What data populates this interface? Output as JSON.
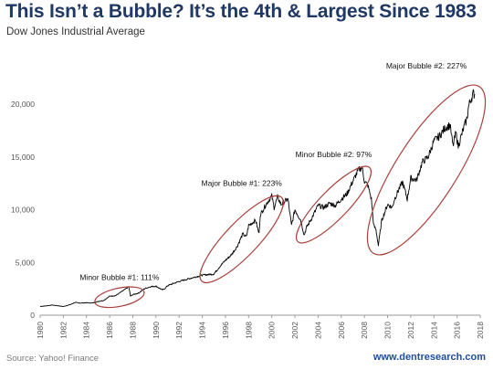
{
  "header": {
    "title": "This Isn’t a Bubble? It’s the 4th & Largest Since 1983",
    "subtitle": "Dow Jones Industrial  Average"
  },
  "footer": {
    "source": "Source: Yahoo! Finance",
    "website": "www.dentresearch.com"
  },
  "colors": {
    "title": "#1f3864",
    "line": "#000000",
    "ellipse": "#a8403a",
    "website": "#1f4e9a"
  },
  "chart_data": {
    "type": "line",
    "title": "This Isn’t a Bubble? It’s the 4th & Largest Since 1983",
    "subtitle": "Dow Jones Industrial  Average",
    "xlabel": "",
    "ylabel": "",
    "xlim": [
      1980,
      2018
    ],
    "ylim": [
      0,
      20000
    ],
    "grid": false,
    "y_ticks": [
      "0",
      "5,000",
      "10,000",
      "15,000",
      "20,000"
    ],
    "x_ticks": [
      "1980",
      "1982",
      "1984",
      "1986",
      "1988",
      "1990",
      "1992",
      "1994",
      "1996",
      "1998",
      "2000",
      "2002",
      "2004",
      "2006",
      "2008",
      "2010",
      "2012",
      "2014",
      "2016",
      "2018"
    ],
    "series": [
      {
        "x": [
          1980,
          1980.5,
          1981,
          1981.5,
          1982,
          1982.6,
          1983,
          1983.5,
          1984,
          1984.5,
          1985,
          1985.5,
          1986,
          1986.5,
          1987,
          1987.4,
          1987.65,
          1987.8,
          1988,
          1988.5,
          1989,
          1989.5,
          1990,
          1990.55,
          1990.8,
          1991,
          1992,
          1993,
          1994,
          1995,
          1995.5,
          1996,
          1996.5,
          1997,
          1997.5,
          1997.8,
          1998,
          1998.6,
          1998.9,
          1999,
          1999.5,
          2000,
          2000.2,
          2000.5,
          2000.8,
          2001,
          2001.4,
          2001.7,
          2002,
          2002.5,
          2002.8,
          2003,
          2003.5,
          2004,
          2004.5,
          2005,
          2005.5,
          2006,
          2006.5,
          2007,
          2007.5,
          2007.8,
          2008,
          2008.3,
          2008.6,
          2008.8,
          2009,
          2009.2,
          2009.5,
          2010,
          2010.4,
          2010.6,
          2011,
          2011.3,
          2011.7,
          2012,
          2012.5,
          2013,
          2013.5,
          2014,
          2014.5,
          2015,
          2015.4,
          2015.65,
          2015.9,
          2016.1,
          2016.5,
          2016.85,
          2017,
          2017.2,
          2017.4,
          2017.55
        ],
        "y": [
          830,
          880,
          960,
          900,
          820,
          1000,
          1200,
          1150,
          1180,
          1150,
          1300,
          1400,
          1800,
          1850,
          2200,
          2500,
          2700,
          1800,
          1950,
          2100,
          2500,
          2700,
          2750,
          2400,
          2550,
          2800,
          3200,
          3500,
          3800,
          3900,
          4600,
          5200,
          5700,
          6500,
          7700,
          7400,
          8500,
          9000,
          7700,
          9500,
          10500,
          11300,
          10200,
          11200,
          10500,
          10700,
          11000,
          8500,
          10000,
          9000,
          7600,
          8300,
          9300,
          10400,
          10200,
          10600,
          10400,
          11000,
          11500,
          12700,
          13800,
          14000,
          12700,
          12300,
          11000,
          8500,
          8100,
          6600,
          9000,
          10500,
          10200,
          11000,
          12000,
          12600,
          11000,
          13000,
          12800,
          14500,
          15000,
          16500,
          17000,
          17800,
          18000,
          16000,
          17300,
          16000,
          17500,
          18600,
          19800,
          20500,
          21000,
          20900
        ]
      }
    ],
    "annotations": [
      {
        "label": "Minor Bubble #1: 111%",
        "x_range": [
          1985.5,
          1988.2
        ]
      },
      {
        "label": "Major Bubble #1: 223%",
        "x_range": [
          1994.5,
          2000.3
        ]
      },
      {
        "label": "Minor Bubble #2: 97%",
        "x_range": [
          2002.8,
          2007.9
        ]
      },
      {
        "label": "Major Bubble #2: 227%",
        "x_range": [
          2009.2,
          2017.5
        ]
      }
    ]
  }
}
